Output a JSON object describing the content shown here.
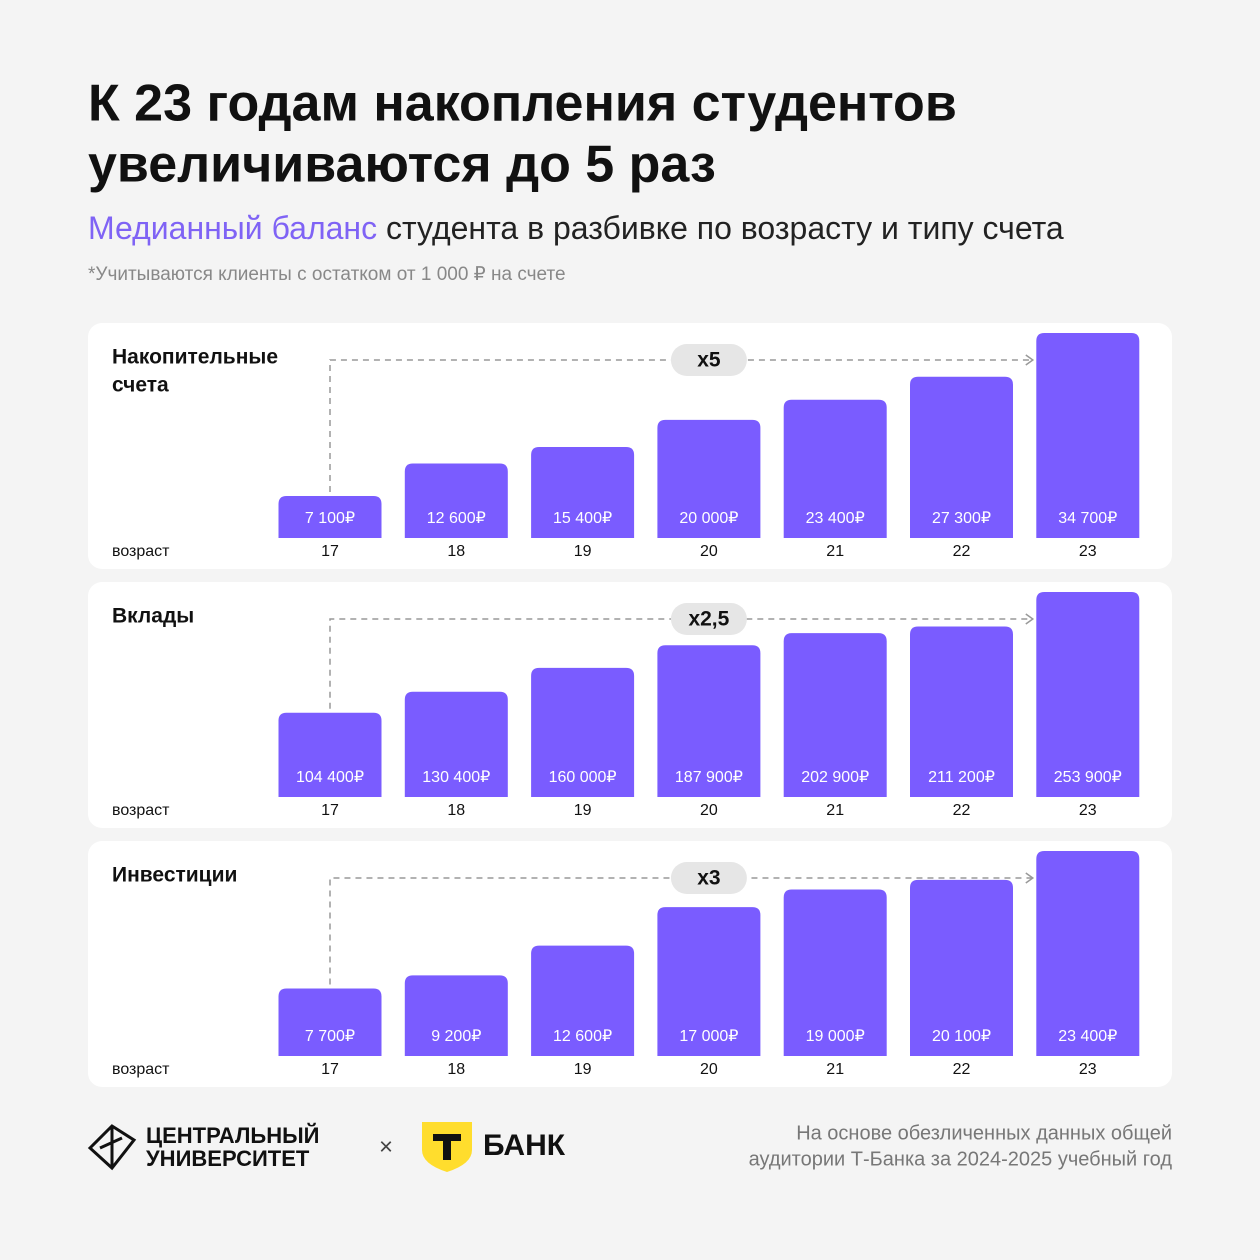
{
  "header": {
    "title": [
      "К 23 годам накопления студентов",
      "увеличиваются до 5 раз"
    ],
    "subtitle_highlight": "Медианный баланс",
    "subtitle_rest": " студента в разбивке по возрасту и типу счета",
    "footnote": "*Учитываются клиенты с остатком от 1 000 ₽ на счете"
  },
  "chart_data": [
    {
      "type": "bar",
      "title": [
        "Накопительные",
        "счета"
      ],
      "x_label": "возраст",
      "annotation": "x5",
      "color": "#7a5cff",
      "categories": [
        "17",
        "18",
        "19",
        "20",
        "21",
        "22",
        "23"
      ],
      "values": [
        7100,
        12600,
        15400,
        20000,
        23400,
        27300,
        34700
      ],
      "value_labels": [
        "7 100₽",
        "12 600₽",
        "15 400₽",
        "20 000₽",
        "23 400₽",
        "27 300₽",
        "34 700₽"
      ]
    },
    {
      "type": "bar",
      "title": [
        "Вклады"
      ],
      "x_label": "возраст",
      "annotation": "x2,5",
      "color": "#7a5cff",
      "categories": [
        "17",
        "18",
        "19",
        "20",
        "21",
        "22",
        "23"
      ],
      "values": [
        104400,
        130400,
        160000,
        187900,
        202900,
        211200,
        253900
      ],
      "value_labels": [
        "104 400₽",
        "130 400₽",
        "160 000₽",
        "187 900₽",
        "202 900₽",
        "211 200₽",
        "253 900₽"
      ]
    },
    {
      "type": "bar",
      "title": [
        "Инвестиции"
      ],
      "x_label": "возраст",
      "annotation": "x3",
      "color": "#7a5cff",
      "categories": [
        "17",
        "18",
        "19",
        "20",
        "21",
        "22",
        "23"
      ],
      "values": [
        7700,
        9200,
        12600,
        17000,
        19000,
        20100,
        23400
      ],
      "value_labels": [
        "7 700₽",
        "9 200₽",
        "12 600₽",
        "17 000₽",
        "19 000₽",
        "20 100₽",
        "23 400₽"
      ]
    }
  ],
  "footer": {
    "logo1": [
      "ЦЕНТРАЛЬНЫЙ",
      "УНИВЕРСИТЕТ"
    ],
    "times": "×",
    "logo2": "БАНК",
    "source": [
      "На основе обезличенных данных общей",
      "аудитории Т-Банка за 2024-2025 учебный год"
    ]
  }
}
